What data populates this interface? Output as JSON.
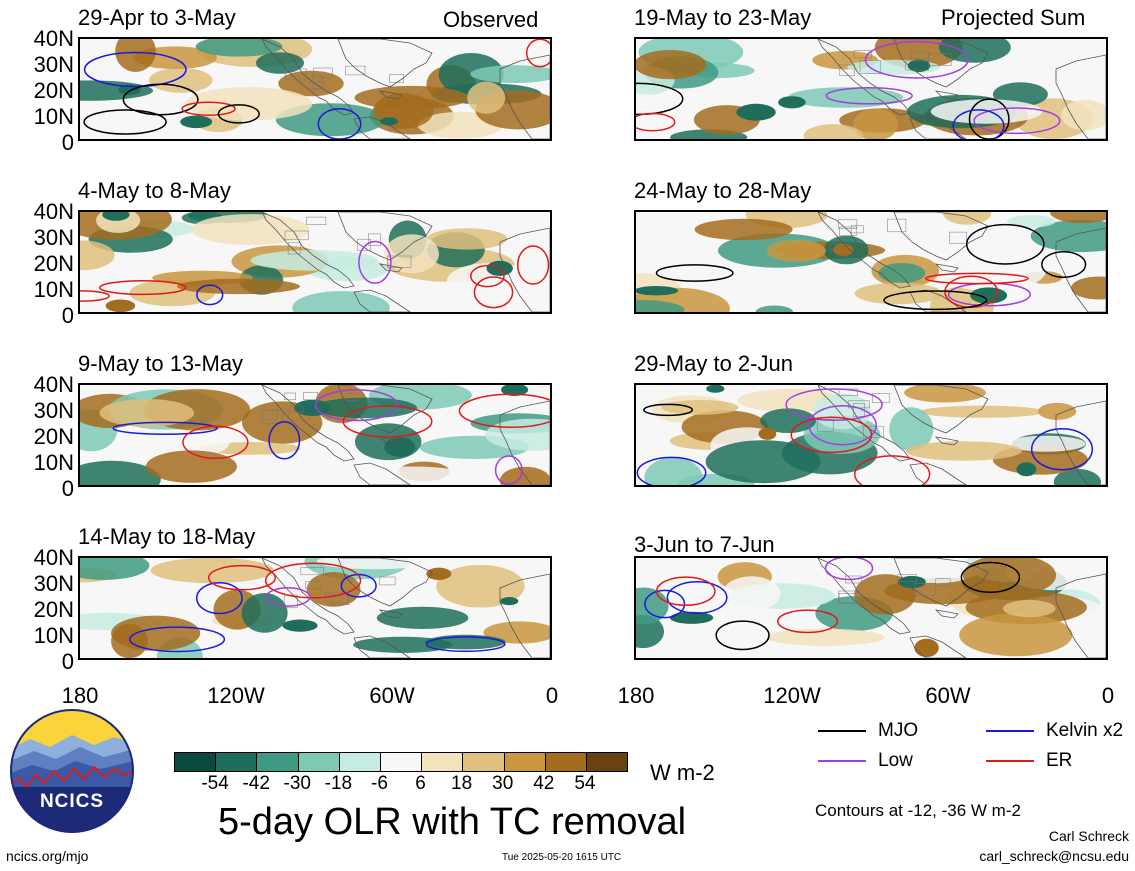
{
  "header": {
    "observed_label": "Observed",
    "projected_label": "Projected Sum"
  },
  "panels": [
    {
      "title": "29-Apr to 3-May"
    },
    {
      "title": "4-May to 8-May"
    },
    {
      "title": "9-May to 13-May"
    },
    {
      "title": "14-May to 18-May"
    },
    {
      "title": "19-May to 23-May"
    },
    {
      "title": "24-May to 28-May"
    },
    {
      "title": "29-May to 2-Jun"
    },
    {
      "title": "3-Jun to 7-Jun"
    }
  ],
  "y_axis_labels": [
    "40N",
    "30N",
    "20N",
    "10N",
    "0"
  ],
  "x_axis_labels": [
    "180",
    "120W",
    "60W",
    "0"
  ],
  "colorbar": {
    "labels": [
      "-54",
      "-42",
      "-30",
      "-18",
      "-6",
      "6",
      "18",
      "30",
      "42",
      "54"
    ],
    "colors": [
      "#0b4a3d",
      "#1f6e5c",
      "#3f9a84",
      "#7ec9b6",
      "#c5ebe2",
      "#f7f7f7",
      "#f2e3bd",
      "#dfc07d",
      "#c9963f",
      "#a36c1e",
      "#6a4212"
    ],
    "units": "W m-2"
  },
  "title": "5-day OLR with TC removal",
  "legend": {
    "items": [
      {
        "label": "MJO",
        "color": "#000000"
      },
      {
        "label": "Kelvin x2",
        "color": "#1a1adc"
      },
      {
        "label": "Low",
        "color": "#a23ee0"
      },
      {
        "label": "ER",
        "color": "#e01a1a"
      }
    ],
    "contours_note": "Contours at -12, -36 W m-2"
  },
  "logo_text": "NCICS",
  "footer": {
    "url": "ncics.org/mjo",
    "timestamp": "Tue 2025-05-20 1615 UTC",
    "author": "Carl Schreck",
    "email": "carl_schreck@ncsu.edu"
  }
}
